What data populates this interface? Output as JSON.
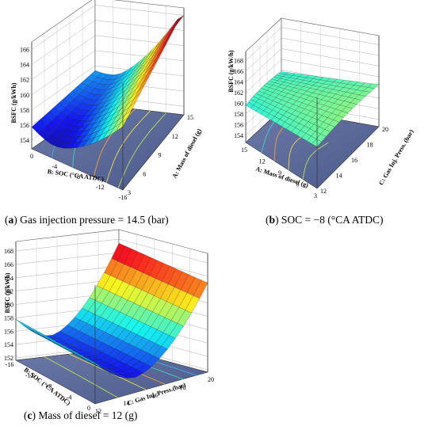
{
  "chart_data": [
    {
      "type": "surface",
      "caption_letter": "a",
      "caption_text": "Gas injection pressure = 14.5 (bar)",
      "zlabel": "BSFC (g/kWh)",
      "zticks": [
        "154",
        "156",
        "158",
        "160",
        "162",
        "164",
        "166"
      ],
      "xlabel": "B: SOC (°CA ATDC)",
      "xticks": [
        "0",
        "-4",
        "-8",
        "-12",
        "-16"
      ],
      "ylabel": "A: Mass of diesel (g)",
      "yticks": [
        "3",
        "6",
        "9",
        "12",
        "15"
      ],
      "surface": "high at SOC 0 / high diesel mass (~166), minimum ~154 near SOC -12 to -16"
    },
    {
      "type": "surface",
      "caption_letter": "b",
      "caption_text": "SOC = −8 (°CA ATDC)",
      "zlabel": "BSFC (g/kW/h)",
      "zticks": [
        "154",
        "156",
        "158",
        "160",
        "162",
        "164",
        "166",
        "168"
      ],
      "xlabel": "A: Mass of diesel (g)",
      "xticks": [
        "15",
        "12",
        "9",
        "6",
        "3"
      ],
      "ylabel": "C: Gas Inj. Press. (bar)",
      "yticks": [
        "12",
        "14",
        "16",
        "18",
        "20"
      ],
      "surface": "nearly flat around 158-159"
    },
    {
      "type": "surface",
      "caption_letter": "c",
      "caption_text": "Mass of diesel = 12 (g)",
      "zlabel": "BSFC (g/kWh)",
      "zticks": [
        "152",
        "154",
        "156",
        "158",
        "160",
        "162",
        "164",
        "166",
        "168"
      ],
      "xlabel": "B: SOC (°CA ATDC)",
      "xticks": [
        "-16",
        "-12",
        "-8",
        "-4",
        "0"
      ],
      "ylabel": "C: Gas Inj. Press.(bar)",
      "yticks": [
        "12",
        "14",
        "16",
        "18",
        "20"
      ],
      "surface": "rises to ~168 at SOC 0, minimum ~152 near SOC -12"
    }
  ]
}
